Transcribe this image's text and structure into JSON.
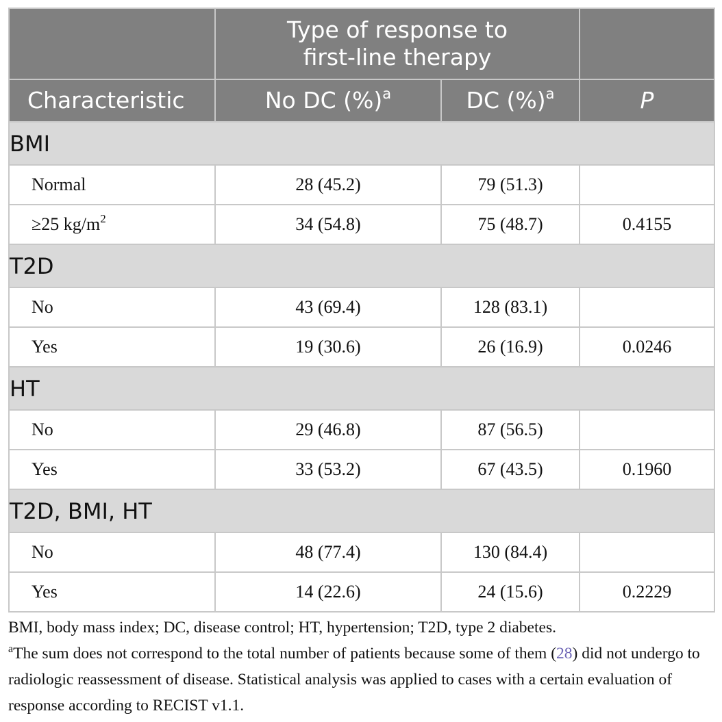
{
  "header": {
    "group_label_line1": "Type of response to",
    "group_label_line2": "first-line therapy",
    "col_characteristic": "Characteristic",
    "col_nodc": "No DC (%)",
    "col_dc": "DC (%)",
    "col_p": "P",
    "sup_marker": "a"
  },
  "sections": [
    {
      "title": "BMI",
      "rows": [
        {
          "label": "Normal",
          "nodc": "28 (45.2)",
          "dc": "79 (51.3)",
          "p": ""
        },
        {
          "label": "≥25 kg/m",
          "label_sup": "2",
          "nodc": "34 (54.8)",
          "dc": "75 (48.7)",
          "p": "0.4155"
        }
      ]
    },
    {
      "title": "T2D",
      "rows": [
        {
          "label": "No",
          "nodc": "43 (69.4)",
          "dc": "128 (83.1)",
          "p": ""
        },
        {
          "label": "Yes",
          "nodc": "19 (30.6)",
          "dc": "26 (16.9)",
          "p": "0.0246"
        }
      ]
    },
    {
      "title": "HT",
      "rows": [
        {
          "label": "No",
          "nodc": "29 (46.8)",
          "dc": "87 (56.5)",
          "p": ""
        },
        {
          "label": "Yes",
          "nodc": "33 (53.2)",
          "dc": "67 (43.5)",
          "p": "0.1960"
        }
      ]
    },
    {
      "title": "T2D, BMI, HT",
      "rows": [
        {
          "label": "No",
          "nodc": "48 (77.4)",
          "dc": "130 (84.4)",
          "p": ""
        },
        {
          "label": "Yes",
          "nodc": "14 (22.6)",
          "dc": "24 (15.6)",
          "p": "0.2229"
        }
      ]
    }
  ],
  "footnotes": {
    "abbreviations": "BMI, body mass index; DC, disease control; HT, hypertension; T2D, type 2 diabetes.",
    "note_marker": "a",
    "note_part1": "The sum does not correspond to the total number of patients because some of them (",
    "note_ref": "28",
    "note_part2": ") did not undergo to radiologic reassessment of disease. Statistical analysis was applied to cases with a certain evaluation of response according to RECIST v1.1."
  }
}
